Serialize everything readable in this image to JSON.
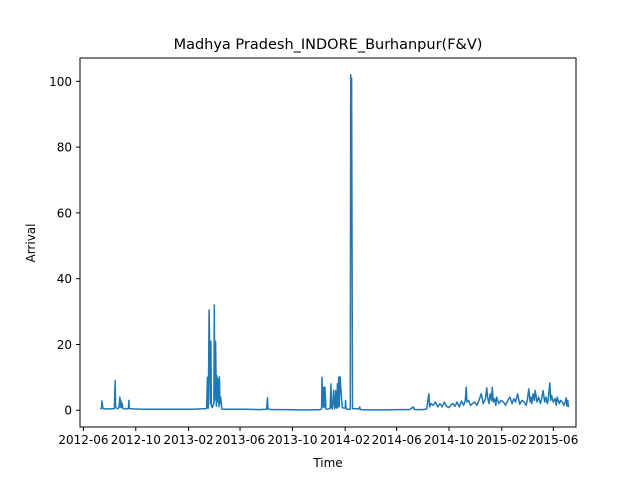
{
  "chart_data": {
    "type": "line",
    "title": "Madhya Pradesh_INDORE_Burhanpur(F&V)",
    "xlabel": "Time",
    "ylabel": "Arrival",
    "x_tick_labels": [
      "2012-06",
      "2012-10",
      "2013-02",
      "2013-06",
      "2013-10",
      "2014-02",
      "2014-06",
      "2014-10",
      "2015-02",
      "2015-06"
    ],
    "x_tick_dates": [
      "2012-06-01",
      "2012-10-01",
      "2013-02-01",
      "2013-06-01",
      "2013-10-01",
      "2014-02-01",
      "2014-06-01",
      "2014-10-01",
      "2015-02-01",
      "2015-06-01"
    ],
    "xlim": [
      "2012-05-24",
      "2015-07-24"
    ],
    "y_ticks": [
      0,
      20,
      40,
      60,
      80,
      100
    ],
    "ylim": [
      -5.1,
      107.1
    ],
    "grid": false,
    "series": [
      {
        "color": "#1f77b4",
        "x": [
          "2012-07-10",
          "2012-07-13",
          "2012-07-14",
          "2012-07-16",
          "2012-07-17",
          "2012-07-19",
          "2012-07-22",
          "2012-07-25",
          "2012-07-30",
          "2012-08-06",
          "2012-08-12",
          "2012-08-14",
          "2012-08-15",
          "2012-08-17",
          "2012-08-20",
          "2012-08-23",
          "2012-08-25",
          "2012-08-26",
          "2012-08-27",
          "2012-08-28",
          "2012-08-30",
          "2012-09-01",
          "2012-09-03",
          "2012-09-10",
          "2012-09-14",
          "2012-09-15",
          "2012-09-16",
          "2012-09-17",
          "2012-09-25",
          "2012-10-15",
          "2012-11-15",
          "2012-12-15",
          "2013-01-15",
          "2013-02-10",
          "2013-03-15",
          "2013-03-17",
          "2013-03-18",
          "2013-03-19",
          "2013-03-21",
          "2013-03-24",
          "2013-03-25",
          "2013-03-26",
          "2013-03-28",
          "2013-04-01",
          "2013-04-02",
          "2013-04-03",
          "2013-04-05",
          "2013-04-07",
          "2013-04-08",
          "2013-04-09",
          "2013-04-11",
          "2013-04-13",
          "2013-04-14",
          "2013-04-15",
          "2013-04-17",
          "2013-04-19",
          "2013-04-20",
          "2013-04-21",
          "2013-04-23",
          "2013-04-25",
          "2013-04-26",
          "2013-04-28",
          "2013-05-15",
          "2013-06-15",
          "2013-07-15",
          "2013-08-02",
          "2013-08-04",
          "2013-08-05",
          "2013-08-07",
          "2013-08-15",
          "2013-09-15",
          "2013-10-15",
          "2013-11-15",
          "2013-12-05",
          "2013-12-08",
          "2013-12-09",
          "2013-12-11",
          "2013-12-13",
          "2013-12-14",
          "2013-12-16",
          "2013-12-18",
          "2013-12-19",
          "2013-12-21",
          "2013-12-28",
          "2013-12-30",
          "2013-12-31",
          "2014-01-02",
          "2014-01-05",
          "2014-01-07",
          "2014-01-08",
          "2014-01-10",
          "2014-01-11",
          "2014-01-13",
          "2014-01-14",
          "2014-01-15",
          "2014-01-17",
          "2014-01-18",
          "2014-01-20",
          "2014-01-25",
          "2014-02-01",
          "2014-02-02",
          "2014-02-03",
          "2014-02-05",
          "2014-02-10",
          "2014-02-13",
          "2014-02-14",
          "2014-02-15",
          "2014-02-16",
          "2014-02-18",
          "2014-03-05",
          "2014-03-07",
          "2014-03-08",
          "2014-03-10",
          "2014-04-01",
          "2014-05-01",
          "2014-06-01",
          "2014-07-01",
          "2014-07-10",
          "2014-07-12",
          "2014-07-14",
          "2014-08-01",
          "2014-08-10",
          "2014-08-15",
          "2014-08-17",
          "2014-08-20",
          "2014-08-25",
          "2014-08-30",
          "2014-09-05",
          "2014-09-10",
          "2014-09-15",
          "2014-09-20",
          "2014-09-25",
          "2014-10-01",
          "2014-10-05",
          "2014-10-10",
          "2014-10-15",
          "2014-10-20",
          "2014-10-25",
          "2014-10-30",
          "2014-11-04",
          "2014-11-08",
          "2014-11-10",
          "2014-11-12",
          "2014-11-16",
          "2014-11-20",
          "2014-11-25",
          "2014-11-30",
          "2014-12-05",
          "2014-12-10",
          "2014-12-15",
          "2014-12-20",
          "2014-12-25",
          "2014-12-28",
          "2014-12-30",
          "2015-01-02",
          "2015-01-05",
          "2015-01-08",
          "2015-01-10",
          "2015-01-12",
          "2015-01-15",
          "2015-01-18",
          "2015-01-20",
          "2015-01-25",
          "2015-01-30",
          "2015-02-05",
          "2015-02-10",
          "2015-02-15",
          "2015-02-20",
          "2015-02-25",
          "2015-03-01",
          "2015-03-05",
          "2015-03-10",
          "2015-03-15",
          "2015-03-20",
          "2015-03-25",
          "2015-03-30",
          "2015-04-02",
          "2015-04-05",
          "2015-04-08",
          "2015-04-10",
          "2015-04-12",
          "2015-04-15",
          "2015-04-18",
          "2015-04-20",
          "2015-04-24",
          "2015-04-28",
          "2015-05-02",
          "2015-05-05",
          "2015-05-08",
          "2015-05-12",
          "2015-05-15",
          "2015-05-18",
          "2015-05-20",
          "2015-05-24",
          "2015-05-26",
          "2015-05-28",
          "2015-06-01",
          "2015-06-05",
          "2015-06-08",
          "2015-06-10",
          "2015-06-15",
          "2015-06-18",
          "2015-06-22",
          "2015-06-26",
          "2015-06-30",
          "2015-07-01",
          "2015-07-03",
          "2015-07-05",
          "2015-07-06",
          "2015-07-07"
        ],
        "values": [
          0.5,
          0.5,
          2.8,
          1.0,
          0.5,
          0.4,
          0.4,
          0.4,
          0.4,
          0.4,
          0.5,
          9.0,
          1.0,
          0.6,
          0.5,
          0.8,
          4.0,
          1.0,
          3.0,
          0.8,
          2.2,
          0.6,
          0.4,
          0.4,
          0.5,
          3.0,
          0.8,
          0.5,
          0.4,
          0.3,
          0.3,
          0.3,
          0.3,
          0.3,
          0.5,
          10.0,
          1.0,
          0.6,
          30.5,
          2.0,
          21.0,
          1.5,
          0.8,
          2.0,
          32.0,
          3.0,
          21.0,
          1.2,
          10.5,
          2.5,
          9.5,
          1.0,
          10.2,
          2.0,
          4.0,
          1.0,
          0.3,
          0.3,
          0.3,
          0.3,
          0.3,
          0.3,
          0.3,
          0.3,
          0.2,
          0.3,
          3.8,
          0.5,
          0.3,
          0.2,
          0.2,
          0.1,
          0.1,
          0.2,
          0.5,
          10.0,
          1.0,
          7.0,
          0.8,
          7.0,
          0.6,
          0.3,
          0.3,
          0.5,
          8.0,
          1.0,
          0.4,
          6.0,
          1.0,
          0.5,
          6.0,
          1.0,
          0.6,
          8.0,
          1.0,
          10.0,
          1.0,
          10.2,
          0.8,
          0.6,
          3.0,
          0.5,
          0.3,
          0.3,
          0.3,
          102.0,
          50.0,
          101.0,
          0.5,
          0.4,
          1.0,
          0.3,
          0.2,
          0.1,
          0.1,
          0.2,
          0.2,
          1.0,
          0.3,
          0.2,
          0.2,
          0.4,
          5.0,
          1.0,
          2.0,
          1.5,
          2.5,
          1.0,
          2.0,
          1.0,
          2.5,
          1.2,
          0.8,
          1.5,
          2.0,
          1.2,
          2.5,
          1.0,
          2.8,
          1.5,
          3.0,
          7.0,
          2.5,
          3.0,
          1.5,
          2.0,
          2.5,
          1.5,
          3.0,
          5.0,
          2.0,
          3.5,
          6.8,
          4.0,
          2.0,
          5.0,
          3.0,
          7.0,
          2.5,
          3.5,
          1.5,
          4.0,
          2.0,
          3.0,
          2.5,
          1.5,
          3.0,
          4.0,
          2.0,
          3.5,
          2.5,
          5.0,
          1.8,
          3.0,
          2.5,
          1.5,
          3.5,
          6.5,
          2.5,
          4.0,
          2.0,
          5.0,
          3.0,
          6.0,
          2.5,
          4.0,
          2.0,
          3.5,
          6.0,
          2.5,
          4.0,
          2.0,
          3.0,
          8.3,
          3.0,
          4.5,
          2.5,
          3.5,
          1.5,
          4.0,
          2.0,
          3.0,
          2.5,
          1.5,
          3.0,
          3.8,
          1.2,
          3.0,
          1.5,
          1.0
        ]
      }
    ]
  }
}
